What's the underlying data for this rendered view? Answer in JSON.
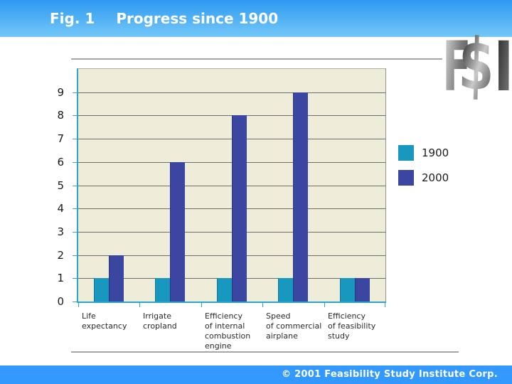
{
  "header": {
    "figure_label": "Fig. 1",
    "title": "Progress since 1900"
  },
  "logo": {
    "letters": [
      "F",
      "$",
      "I"
    ]
  },
  "chart_data": {
    "type": "bar",
    "title": "Progress since 1900",
    "categories": [
      "Life expectancy",
      "Irrigate cropland",
      "Efficiency of internal combustion engine",
      "Speed of commercial airplane",
      "Efficiency of feasibility study"
    ],
    "categories_display": [
      "Life\nexpectancy",
      "Irrigate\ncropland",
      "Efficiency\nof internal\ncombustion\nengine",
      "Speed\nof commercial\nairplane",
      "Efficiency\nof feasibility\nstudy"
    ],
    "series": [
      {
        "name": "1900",
        "color": "#1898BF",
        "values": [
          1,
          1,
          1,
          1,
          1
        ]
      },
      {
        "name": "2000",
        "color": "#3A46A0",
        "values": [
          2,
          6,
          8,
          9,
          1
        ]
      }
    ],
    "ylim": [
      0,
      10
    ],
    "yticks": [
      0,
      1,
      2,
      3,
      4,
      5,
      6,
      7,
      8,
      9
    ],
    "grid": true,
    "legend_position": "right",
    "plot_bg": "#EDEDDA",
    "axis_color": "#2BA6C9",
    "grid_color": "#6E6E6E"
  },
  "legend": {
    "items": [
      {
        "label": "1900",
        "color": "#1898BF"
      },
      {
        "label": "2000",
        "color": "#3A46A0"
      }
    ]
  },
  "footer": {
    "copyright": "© 2001 Feasibility Study Institute Corp."
  },
  "colors": {
    "header_top": "#2E99F3",
    "header_bottom": "#74C8F7",
    "footer_bg": "#3399FF"
  }
}
